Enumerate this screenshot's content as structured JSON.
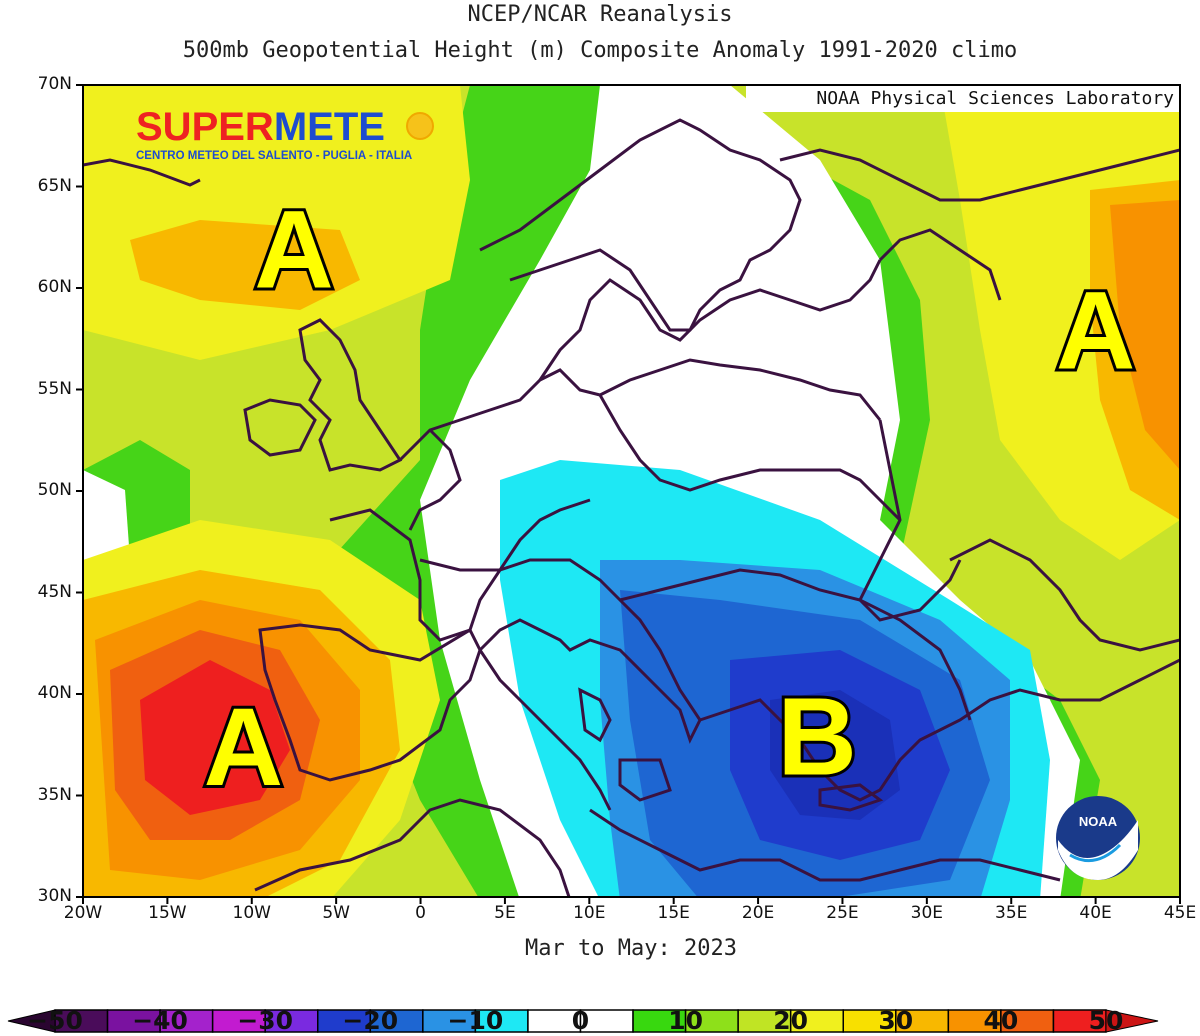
{
  "header": {
    "line1": "NCEP/NCAR Reanalysis",
    "line2": "500mb Geopotential Height (m) Composite Anomaly 1991-2020 climo"
  },
  "credit": "NOAA Physical Sciences Laboratory",
  "period": "Mar to May: 2023",
  "watermark": {
    "brand_part1": "SUPER",
    "brand_part2": "METE",
    "tagline": "CENTRO METEO DEL SALENTO - PUGLIA - ITALIA"
  },
  "noaa_logo_text": "NOAA",
  "axes": {
    "lat_labels": [
      "70N",
      "65N",
      "60N",
      "55N",
      "50N",
      "45N",
      "40N",
      "35N",
      "30N"
    ],
    "lon_labels": [
      "20W",
      "15W",
      "10W",
      "5W",
      "0",
      "5E",
      "10E",
      "15E",
      "20E",
      "25E",
      "30E",
      "35E",
      "40E",
      "45E"
    ]
  },
  "map_data": {
    "extent": {
      "lon": [
        -20,
        45
      ],
      "lat": [
        30,
        70
      ]
    },
    "centers": [
      {
        "label": "A",
        "lon": -7.5,
        "lat": 62,
        "type": "high"
      },
      {
        "label": "A",
        "lon": -10.5,
        "lat": 37.5,
        "type": "high",
        "anomaly": 50
      },
      {
        "label": "A",
        "lon": 40,
        "lat": 58,
        "type": "high"
      },
      {
        "label": "B",
        "lon": 23.5,
        "lat": 38,
        "type": "low",
        "anomaly": -25
      }
    ]
  },
  "colorbar": {
    "min": -50,
    "max": 50,
    "step": 5,
    "labels": [
      "-50",
      "-40",
      "-30",
      "-20",
      "-10",
      "0",
      "10",
      "20",
      "30",
      "40",
      "50"
    ],
    "colors": [
      "#4a0c5a",
      "#7a12a0",
      "#a422cc",
      "#c21bd0",
      "#7a2ae0",
      "#1f3ccc",
      "#1e66d2",
      "#2a92e4",
      "#1ee8f4",
      "#ffffff",
      "#ffffff",
      "#38d80f",
      "#8ee01a",
      "#c0e424",
      "#f0f01e",
      "#f8e000",
      "#f8b800",
      "#f89200",
      "#f06010",
      "#ee1f1f"
    ]
  }
}
